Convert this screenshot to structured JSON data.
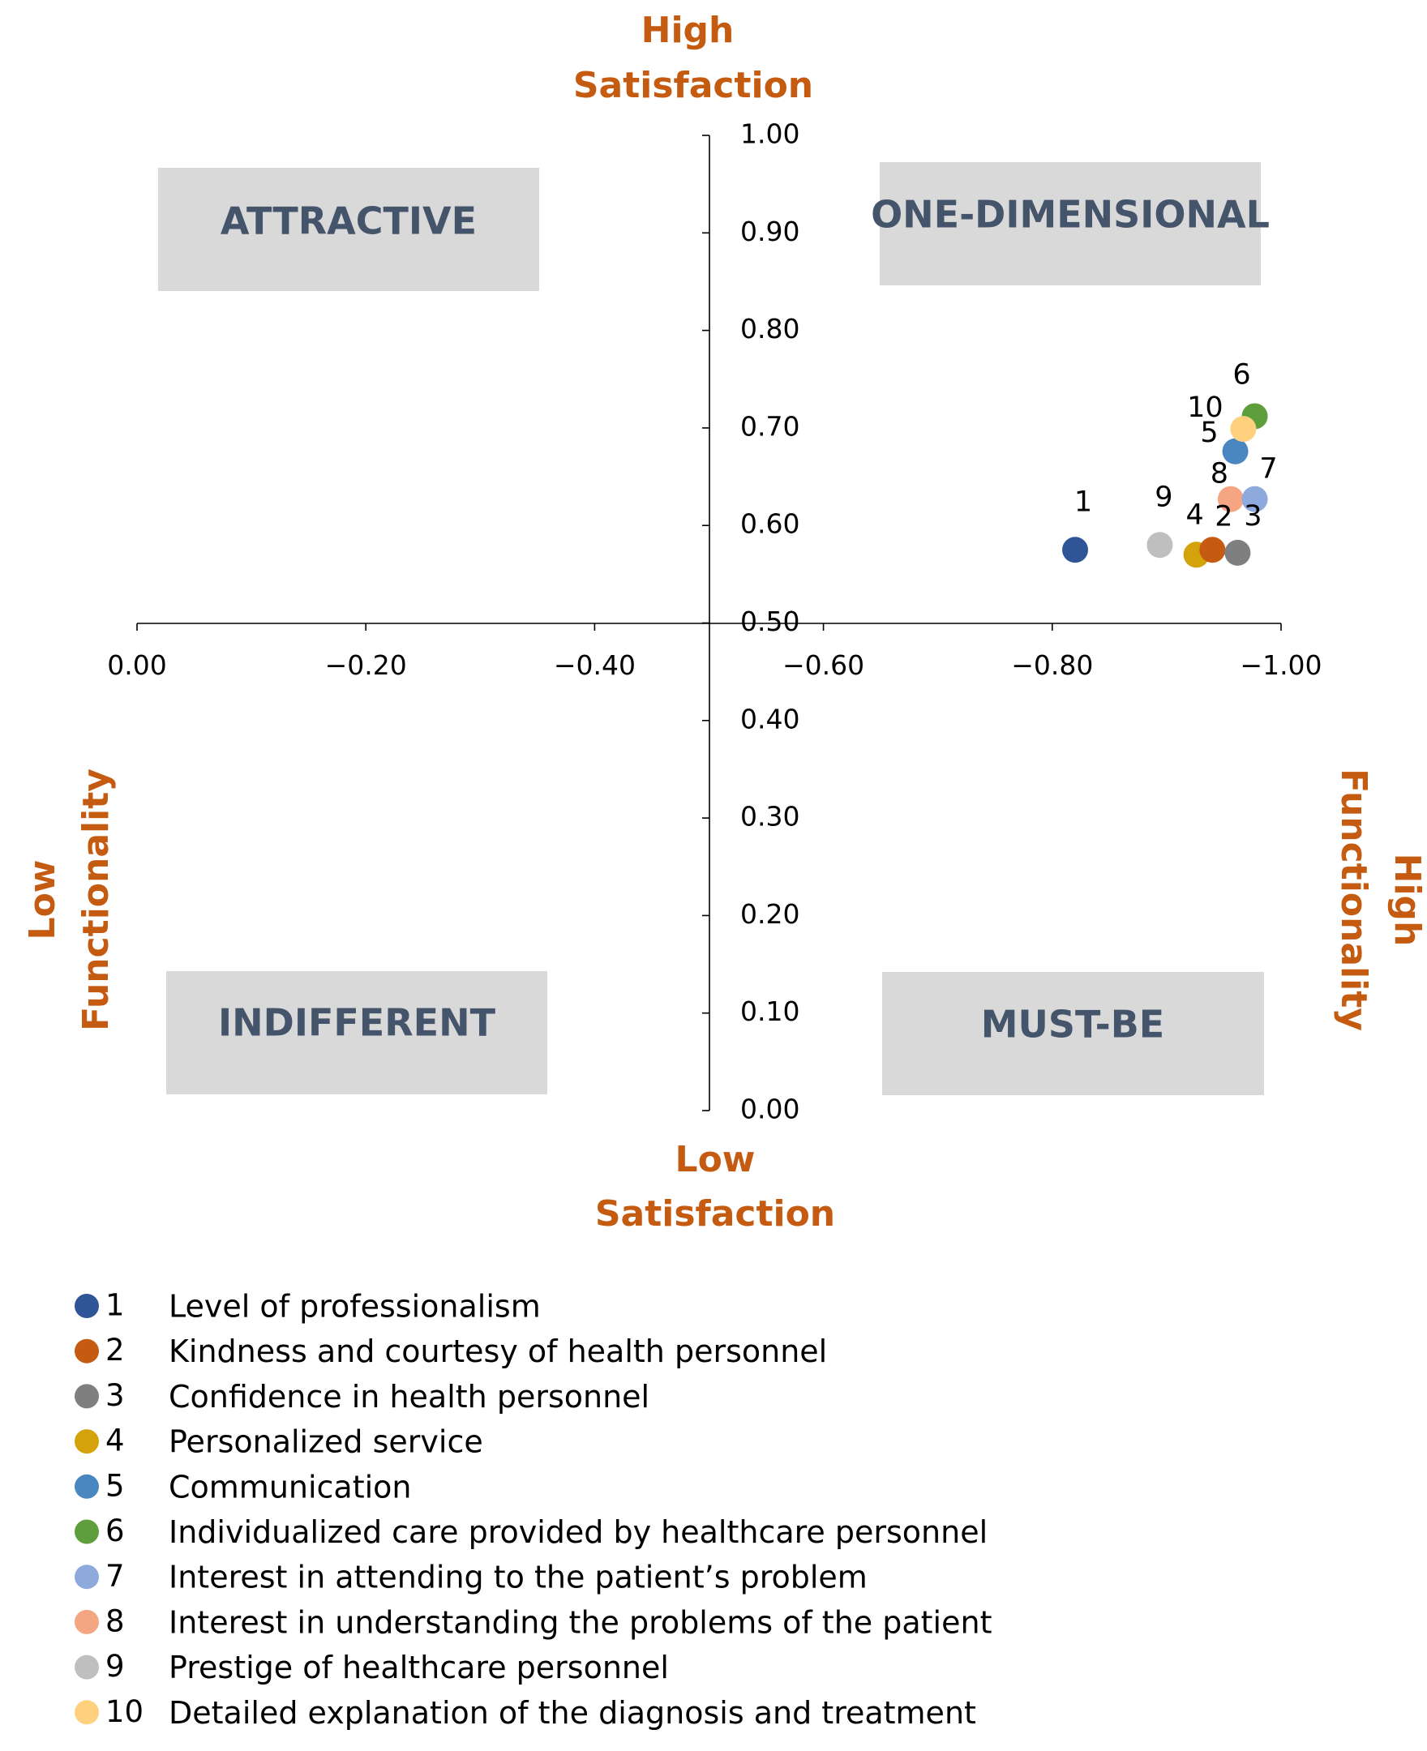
{
  "chart_data": {
    "type": "scatter",
    "title": "",
    "x_axis": {
      "label_negative": "Low Functionality",
      "label_positive": "High Functionality",
      "range": [
        0.0,
        -1.0
      ],
      "ticks": [
        "0.00",
        "−0.20",
        "−0.40",
        "−0.60",
        "−0.80",
        "−1.00"
      ],
      "tick_values": [
        0.0,
        -0.2,
        -0.4,
        -0.6,
        -0.8,
        -1.0
      ]
    },
    "y_axis": {
      "label_top": "High Satisfaction",
      "label_bottom": "Low Satisfaction",
      "range": [
        0.0,
        1.0
      ],
      "ticks": [
        "0.00",
        "0.10",
        "0.20",
        "0.30",
        "0.40",
        "0.50",
        "0.60",
        "0.70",
        "0.80",
        "0.90",
        "1.00"
      ],
      "tick_values": [
        0.0,
        0.1,
        0.2,
        0.3,
        0.4,
        0.5,
        0.6,
        0.7,
        0.8,
        0.9,
        1.0
      ]
    },
    "quadrants": [
      "ATTRACTIVE",
      "ONE-DIMENSIONAL",
      "INDIFFERENT",
      "MUST-BE"
    ],
    "points": [
      {
        "id": "1",
        "label": "Level of professionalism",
        "x": -0.82,
        "y": 0.575,
        "color": "#2F5597"
      },
      {
        "id": "2",
        "label": "Kindness and courtesy of health personnel",
        "x": -0.94,
        "y": 0.575,
        "color": "#C55A11"
      },
      {
        "id": "3",
        "label": "Confidence in health personnel",
        "x": -0.962,
        "y": 0.572,
        "color": "#7F7F7F"
      },
      {
        "id": "4",
        "label": "Personalized service",
        "x": -0.926,
        "y": 0.57,
        "color": "#D4A20B"
      },
      {
        "id": "5",
        "label": "Communication",
        "x": -0.96,
        "y": 0.676,
        "color": "#4A86C0"
      },
      {
        "id": "6",
        "label": "Individualized care provided by healthcare personnel",
        "x": -0.977,
        "y": 0.712,
        "color": "#5F9E3C"
      },
      {
        "id": "7",
        "label": "Interest in attending to the patient’s problem",
        "x": -0.977,
        "y": 0.627,
        "color": "#8EA9DB"
      },
      {
        "id": "8",
        "label": "Interest in understanding the problems of the patient",
        "x": -0.956,
        "y": 0.627,
        "color": "#F4A582"
      },
      {
        "id": "9",
        "label": "Prestige of healthcare personnel",
        "x": -0.894,
        "y": 0.58,
        "color": "#BFBFBF"
      },
      {
        "id": "10",
        "label": "Detailed explanation of the diagnosis and treatment",
        "x": -0.967,
        "y": 0.699,
        "color": "#FFD17F"
      }
    ]
  },
  "labels": {
    "high_satisfaction_1": "High",
    "high_satisfaction_2": "Satisfaction",
    "low_satisfaction_1": "Low",
    "low_satisfaction_2": "Satisfaction",
    "low_functionality_1": "Low",
    "low_functionality_2": "Functionality",
    "high_functionality_1": "High",
    "high_functionality_2": "Functionality",
    "attractive": "ATTRACTIVE",
    "one_dimensional": "ONE-DIMENSIONAL",
    "indifferent": "INDIFFERENT",
    "must_be": "MUST-BE"
  }
}
